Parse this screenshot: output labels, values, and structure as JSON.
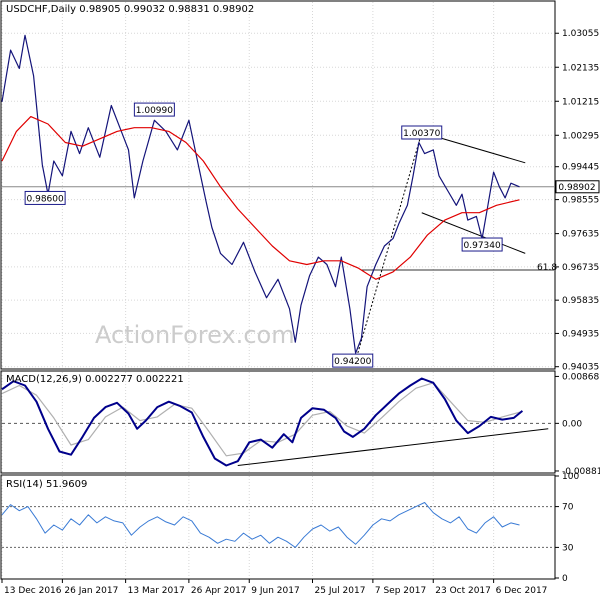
{
  "chart_data": {
    "type": "line",
    "price": {
      "header": "USDCHF,Daily  0.98905 0.99032 0.98831 0.98902",
      "ylim": [
        0.94,
        1.039
      ],
      "yticks": [
        "1.03055",
        "1.02135",
        "1.01215",
        "1.00295",
        "0.99445",
        "0.98555",
        "0.97635",
        "0.96735",
        "0.95835",
        "0.94935",
        "0.94035"
      ],
      "last_price": "0.98902",
      "watermark": "ActionForex.com",
      "levels": [
        {
          "text": "1.00990",
          "x": 53,
          "y": 1.0099
        },
        {
          "text": "0.98600",
          "x": 15,
          "y": 0.986
        },
        {
          "text": "1.00370",
          "x": 146,
          "y": 1.0037
        },
        {
          "text": "0.97340",
          "x": 167,
          "y": 0.9734
        },
        {
          "text": "0.94200",
          "x": 122,
          "y": 0.942
        }
      ],
      "fib_label": "61.8",
      "fib_level": 0.9665,
      "close_series": [
        {
          "x": 0,
          "y": 1.012
        },
        {
          "x": 3,
          "y": 1.026
        },
        {
          "x": 6,
          "y": 1.021
        },
        {
          "x": 8,
          "y": 1.03
        },
        {
          "x": 11,
          "y": 1.019
        },
        {
          "x": 14,
          "y": 0.995
        },
        {
          "x": 16,
          "y": 0.987
        },
        {
          "x": 18,
          "y": 0.996
        },
        {
          "x": 21,
          "y": 0.992
        },
        {
          "x": 24,
          "y": 1.004
        },
        {
          "x": 27,
          "y": 0.998
        },
        {
          "x": 30,
          "y": 1.005
        },
        {
          "x": 34,
          "y": 0.997
        },
        {
          "x": 38,
          "y": 1.011
        },
        {
          "x": 41,
          "y": 1.005
        },
        {
          "x": 44,
          "y": 0.999
        },
        {
          "x": 46,
          "y": 0.986
        },
        {
          "x": 49,
          "y": 0.996
        },
        {
          "x": 53,
          "y": 1.007
        },
        {
          "x": 57,
          "y": 1.004
        },
        {
          "x": 61,
          "y": 0.999
        },
        {
          "x": 65,
          "y": 1.007
        },
        {
          "x": 68,
          "y": 0.996
        },
        {
          "x": 71,
          "y": 0.985
        },
        {
          "x": 73,
          "y": 0.978
        },
        {
          "x": 76,
          "y": 0.971
        },
        {
          "x": 80,
          "y": 0.968
        },
        {
          "x": 84,
          "y": 0.974
        },
        {
          "x": 88,
          "y": 0.966
        },
        {
          "x": 92,
          "y": 0.959
        },
        {
          "x": 96,
          "y": 0.964
        },
        {
          "x": 100,
          "y": 0.956
        },
        {
          "x": 102,
          "y": 0.947
        },
        {
          "x": 104,
          "y": 0.957
        },
        {
          "x": 107,
          "y": 0.965
        },
        {
          "x": 110,
          "y": 0.97
        },
        {
          "x": 113,
          "y": 0.968
        },
        {
          "x": 116,
          "y": 0.962
        },
        {
          "x": 118,
          "y": 0.97
        },
        {
          "x": 121,
          "y": 0.956
        },
        {
          "x": 123,
          "y": 0.944
        },
        {
          "x": 125,
          "y": 0.948
        },
        {
          "x": 127,
          "y": 0.962
        },
        {
          "x": 130,
          "y": 0.968
        },
        {
          "x": 133,
          "y": 0.973
        },
        {
          "x": 136,
          "y": 0.975
        },
        {
          "x": 138,
          "y": 0.979
        },
        {
          "x": 141,
          "y": 0.984
        },
        {
          "x": 143,
          "y": 0.992
        },
        {
          "x": 145,
          "y": 1.001
        },
        {
          "x": 147,
          "y": 0.998
        },
        {
          "x": 150,
          "y": 0.999
        },
        {
          "x": 152,
          "y": 0.992
        },
        {
          "x": 155,
          "y": 0.988
        },
        {
          "x": 158,
          "y": 0.984
        },
        {
          "x": 160,
          "y": 0.987
        },
        {
          "x": 162,
          "y": 0.98
        },
        {
          "x": 165,
          "y": 0.981
        },
        {
          "x": 167,
          "y": 0.975
        },
        {
          "x": 169,
          "y": 0.984
        },
        {
          "x": 171,
          "y": 0.993
        },
        {
          "x": 173,
          "y": 0.989
        },
        {
          "x": 175,
          "y": 0.986
        },
        {
          "x": 177,
          "y": 0.99
        },
        {
          "x": 180,
          "y": 0.989
        }
      ],
      "ma_series": [
        {
          "x": 0,
          "y": 0.996
        },
        {
          "x": 5,
          "y": 1.004
        },
        {
          "x": 10,
          "y": 1.008
        },
        {
          "x": 16,
          "y": 1.006
        },
        {
          "x": 22,
          "y": 1.001
        },
        {
          "x": 28,
          "y": 1.0
        },
        {
          "x": 34,
          "y": 1.002
        },
        {
          "x": 40,
          "y": 1.004
        },
        {
          "x": 46,
          "y": 1.005
        },
        {
          "x": 52,
          "y": 1.005
        },
        {
          "x": 58,
          "y": 1.004
        },
        {
          "x": 64,
          "y": 1.001
        },
        {
          "x": 70,
          "y": 0.996
        },
        {
          "x": 76,
          "y": 0.989
        },
        {
          "x": 82,
          "y": 0.983
        },
        {
          "x": 88,
          "y": 0.978
        },
        {
          "x": 94,
          "y": 0.973
        },
        {
          "x": 100,
          "y": 0.969
        },
        {
          "x": 106,
          "y": 0.968
        },
        {
          "x": 112,
          "y": 0.969
        },
        {
          "x": 118,
          "y": 0.969
        },
        {
          "x": 124,
          "y": 0.967
        },
        {
          "x": 130,
          "y": 0.964
        },
        {
          "x": 136,
          "y": 0.966
        },
        {
          "x": 142,
          "y": 0.97
        },
        {
          "x": 148,
          "y": 0.976
        },
        {
          "x": 154,
          "y": 0.98
        },
        {
          "x": 160,
          "y": 0.982
        },
        {
          "x": 166,
          "y": 0.982
        },
        {
          "x": 172,
          "y": 0.984
        },
        {
          "x": 180,
          "y": 0.9855
        }
      ],
      "trendlines": [
        {
          "x1": 146,
          "y1": 1.0037,
          "x2": 182,
          "y2": 0.9955
        },
        {
          "x1": 146,
          "y1": 0.982,
          "x2": 182,
          "y2": 0.971
        },
        {
          "x1": 123,
          "y1": 0.942,
          "x2": 146,
          "y2": 1.0037
        }
      ]
    },
    "macd": {
      "header": "MACD(12,26,9) 0.002277 0.002221",
      "ylim": [
        -0.009,
        0.0095
      ],
      "yticks": [
        "0.00868",
        "0.00",
        "-0.00881"
      ],
      "macd_series": [
        {
          "x": 0,
          "y": 0.0063
        },
        {
          "x": 4,
          "y": 0.0078
        },
        {
          "x": 8,
          "y": 0.007
        },
        {
          "x": 12,
          "y": 0.004
        },
        {
          "x": 16,
          "y": -0.001
        },
        {
          "x": 20,
          "y": -0.0052
        },
        {
          "x": 24,
          "y": -0.0058
        },
        {
          "x": 28,
          "y": -0.0025
        },
        {
          "x": 32,
          "y": 0.001
        },
        {
          "x": 36,
          "y": 0.003
        },
        {
          "x": 40,
          "y": 0.0038
        },
        {
          "x": 44,
          "y": 0.0018
        },
        {
          "x": 47,
          "y": -0.001
        },
        {
          "x": 50,
          "y": 0.0005
        },
        {
          "x": 54,
          "y": 0.003
        },
        {
          "x": 58,
          "y": 0.004
        },
        {
          "x": 62,
          "y": 0.0032
        },
        {
          "x": 66,
          "y": 0.002
        },
        {
          "x": 70,
          "y": -0.0025
        },
        {
          "x": 74,
          "y": -0.0065
        },
        {
          "x": 78,
          "y": -0.0078
        },
        {
          "x": 82,
          "y": -0.007
        },
        {
          "x": 86,
          "y": -0.0035
        },
        {
          "x": 90,
          "y": -0.003
        },
        {
          "x": 94,
          "y": -0.0045
        },
        {
          "x": 98,
          "y": -0.002
        },
        {
          "x": 101,
          "y": -0.0035
        },
        {
          "x": 104,
          "y": 0.001
        },
        {
          "x": 108,
          "y": 0.0028
        },
        {
          "x": 112,
          "y": 0.0025
        },
        {
          "x": 116,
          "y": 0.001
        },
        {
          "x": 119,
          "y": -0.0015
        },
        {
          "x": 122,
          "y": -0.0025
        },
        {
          "x": 126,
          "y": -0.001
        },
        {
          "x": 130,
          "y": 0.0015
        },
        {
          "x": 134,
          "y": 0.0035
        },
        {
          "x": 138,
          "y": 0.0055
        },
        {
          "x": 142,
          "y": 0.007
        },
        {
          "x": 146,
          "y": 0.0083
        },
        {
          "x": 150,
          "y": 0.0075
        },
        {
          "x": 154,
          "y": 0.0045
        },
        {
          "x": 158,
          "y": 0.0005
        },
        {
          "x": 162,
          "y": -0.0018
        },
        {
          "x": 166,
          "y": -0.0005
        },
        {
          "x": 170,
          "y": 0.0012
        },
        {
          "x": 174,
          "y": 0.0007
        },
        {
          "x": 178,
          "y": 0.001
        },
        {
          "x": 181,
          "y": 0.0023
        }
      ],
      "signal_series": [
        {
          "x": 0,
          "y": 0.0055
        },
        {
          "x": 6,
          "y": 0.007
        },
        {
          "x": 12,
          "y": 0.0052
        },
        {
          "x": 18,
          "y": 0.001
        },
        {
          "x": 24,
          "y": -0.004
        },
        {
          "x": 30,
          "y": -0.003
        },
        {
          "x": 36,
          "y": 0.0012
        },
        {
          "x": 42,
          "y": 0.003
        },
        {
          "x": 48,
          "y": 0.0005
        },
        {
          "x": 54,
          "y": 0.0012
        },
        {
          "x": 60,
          "y": 0.0035
        },
        {
          "x": 66,
          "y": 0.0028
        },
        {
          "x": 72,
          "y": -0.0015
        },
        {
          "x": 78,
          "y": -0.006
        },
        {
          "x": 84,
          "y": -0.0055
        },
        {
          "x": 90,
          "y": -0.0032
        },
        {
          "x": 96,
          "y": -0.0035
        },
        {
          "x": 102,
          "y": -0.002
        },
        {
          "x": 108,
          "y": 0.0015
        },
        {
          "x": 114,
          "y": 0.0022
        },
        {
          "x": 120,
          "y": -0.0005
        },
        {
          "x": 126,
          "y": -0.0018
        },
        {
          "x": 132,
          "y": 0.001
        },
        {
          "x": 138,
          "y": 0.004
        },
        {
          "x": 144,
          "y": 0.0065
        },
        {
          "x": 150,
          "y": 0.0075
        },
        {
          "x": 156,
          "y": 0.004
        },
        {
          "x": 162,
          "y": 0.0005
        },
        {
          "x": 168,
          "y": 0.0002
        },
        {
          "x": 174,
          "y": 0.0012
        },
        {
          "x": 181,
          "y": 0.0022
        }
      ],
      "trendline": {
        "x1": 82,
        "y1": -0.0078,
        "x2": 190,
        "y2": -0.001
      }
    },
    "rsi": {
      "header": "RSI(14) 51.9609",
      "ylim": [
        0,
        100
      ],
      "yticks": [
        "100",
        "70",
        "30",
        "0"
      ],
      "levels": [
        70,
        30
      ],
      "series": [
        {
          "x": 0,
          "y": 62
        },
        {
          "x": 3,
          "y": 72
        },
        {
          "x": 6,
          "y": 66
        },
        {
          "x": 9,
          "y": 70
        },
        {
          "x": 12,
          "y": 58
        },
        {
          "x": 15,
          "y": 44
        },
        {
          "x": 18,
          "y": 52
        },
        {
          "x": 21,
          "y": 47
        },
        {
          "x": 24,
          "y": 58
        },
        {
          "x": 27,
          "y": 52
        },
        {
          "x": 30,
          "y": 62
        },
        {
          "x": 33,
          "y": 54
        },
        {
          "x": 36,
          "y": 60
        },
        {
          "x": 39,
          "y": 56
        },
        {
          "x": 42,
          "y": 54
        },
        {
          "x": 45,
          "y": 42
        },
        {
          "x": 48,
          "y": 50
        },
        {
          "x": 51,
          "y": 56
        },
        {
          "x": 54,
          "y": 60
        },
        {
          "x": 57,
          "y": 55
        },
        {
          "x": 60,
          "y": 52
        },
        {
          "x": 63,
          "y": 60
        },
        {
          "x": 66,
          "y": 56
        },
        {
          "x": 69,
          "y": 44
        },
        {
          "x": 72,
          "y": 40
        },
        {
          "x": 75,
          "y": 34
        },
        {
          "x": 78,
          "y": 38
        },
        {
          "x": 81,
          "y": 36
        },
        {
          "x": 84,
          "y": 44
        },
        {
          "x": 87,
          "y": 38
        },
        {
          "x": 90,
          "y": 42
        },
        {
          "x": 93,
          "y": 34
        },
        {
          "x": 96,
          "y": 40
        },
        {
          "x": 99,
          "y": 36
        },
        {
          "x": 102,
          "y": 30
        },
        {
          "x": 105,
          "y": 40
        },
        {
          "x": 108,
          "y": 48
        },
        {
          "x": 111,
          "y": 52
        },
        {
          "x": 114,
          "y": 46
        },
        {
          "x": 117,
          "y": 50
        },
        {
          "x": 120,
          "y": 40
        },
        {
          "x": 123,
          "y": 33
        },
        {
          "x": 126,
          "y": 42
        },
        {
          "x": 129,
          "y": 52
        },
        {
          "x": 132,
          "y": 58
        },
        {
          "x": 135,
          "y": 56
        },
        {
          "x": 138,
          "y": 62
        },
        {
          "x": 141,
          "y": 66
        },
        {
          "x": 144,
          "y": 70
        },
        {
          "x": 147,
          "y": 74
        },
        {
          "x": 150,
          "y": 64
        },
        {
          "x": 153,
          "y": 58
        },
        {
          "x": 156,
          "y": 54
        },
        {
          "x": 159,
          "y": 60
        },
        {
          "x": 162,
          "y": 48
        },
        {
          "x": 165,
          "y": 44
        },
        {
          "x": 168,
          "y": 54
        },
        {
          "x": 171,
          "y": 60
        },
        {
          "x": 174,
          "y": 50
        },
        {
          "x": 177,
          "y": 54
        },
        {
          "x": 180,
          "y": 52
        }
      ]
    },
    "x_axis": {
      "xlim": [
        0,
        192
      ],
      "ticks": [
        {
          "x": 0,
          "label": "13 Dec 2016"
        },
        {
          "x": 21,
          "label": "26 Jan 2017"
        },
        {
          "x": 43,
          "label": "13 Mar 2017"
        },
        {
          "x": 65,
          "label": "26 Apr 2017"
        },
        {
          "x": 86,
          "label": "9 Jun 2017"
        },
        {
          "x": 108,
          "label": "25 Jul 2017"
        },
        {
          "x": 129,
          "label": "7 Sep 2017"
        },
        {
          "x": 150,
          "label": "23 Oct 2017"
        },
        {
          "x": 171,
          "label": "6 Dec 2017"
        }
      ]
    },
    "colors": {
      "price": "#14147a",
      "ma": "#e00000",
      "macd": "#00008b",
      "signal": "#b0b0b0",
      "rsi": "#3a7bd5",
      "grid": "#d7d7d7",
      "frame": "#000000"
    }
  }
}
